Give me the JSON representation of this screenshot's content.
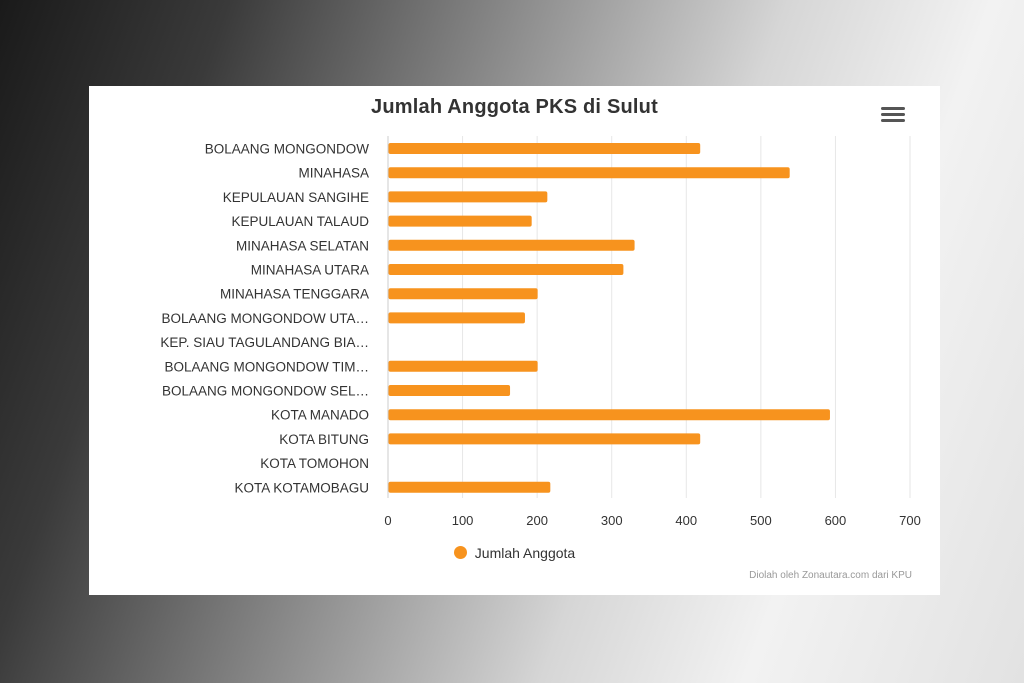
{
  "chart_data": {
    "type": "bar",
    "orientation": "horizontal",
    "title": "Jumlah Anggota PKS di Sulut",
    "categories": [
      "BOLAANG MONGONDOW",
      "MINAHASA",
      "KEPULAUAN SANGIHE",
      "KEPULAUAN TALAUD",
      "MINAHASA SELATAN",
      "MINAHASA UTARA",
      "MINAHASA TENGGARA",
      "BOLAANG MONGONDOW UTA…",
      "KEP. SIAU TAGULANDANG BIA…",
      "BOLAANG MONGONDOW TIM…",
      "BOLAANG MONGONDOW SEL…",
      "KOTA MANADO",
      "KOTA BITUNG",
      "KOTA TOMOHON",
      "KOTA KOTAMOBAGU"
    ],
    "series": [
      {
        "name": "Jumlah Anggota",
        "color": "#F7931E",
        "values": [
          418,
          538,
          213,
          192,
          330,
          315,
          200,
          183,
          0,
          200,
          163,
          592,
          418,
          0,
          217
        ]
      }
    ],
    "xlim": [
      0,
      700
    ],
    "x_ticks": [
      0,
      100,
      200,
      300,
      400,
      500,
      600,
      700
    ],
    "grid": true,
    "legend_position": "bottom-center"
  },
  "legend": {
    "label": "Jumlah Anggota"
  },
  "credits": "Diolah oleh Zonautara.com dari KPU",
  "menu_icon": "hamburger-menu-icon",
  "colors": {
    "bar": "#F7931E",
    "grid": "#e6e6e6",
    "text": "#333333"
  }
}
